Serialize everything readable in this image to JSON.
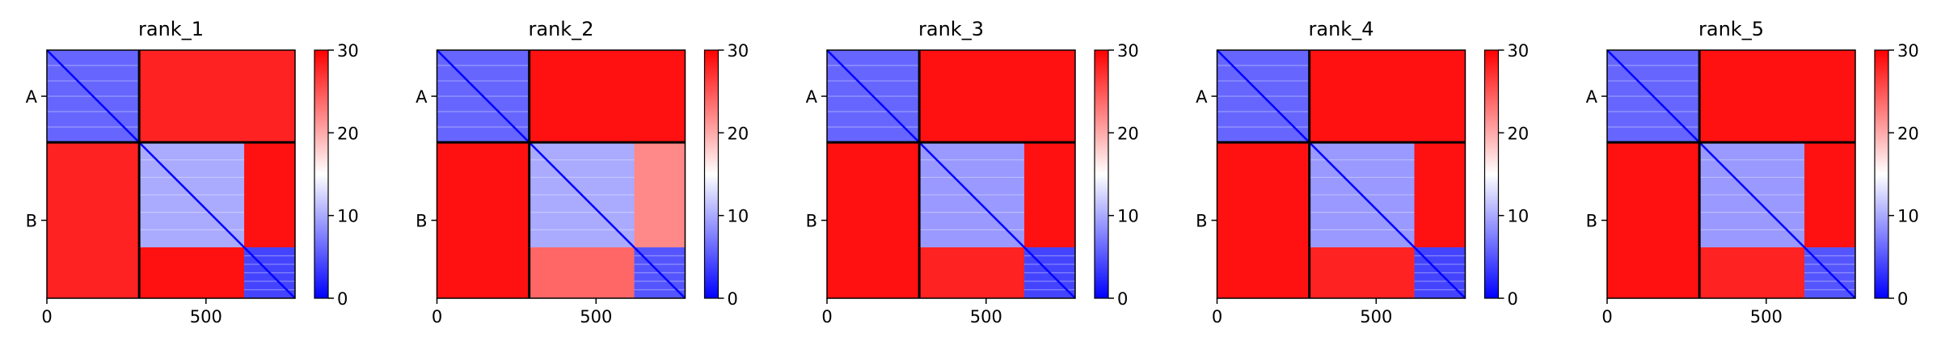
{
  "figure": {
    "background": "#ffffff"
  },
  "colormap": {
    "low": "#0000ff",
    "mid": "#ffffff",
    "high": "#ff0000"
  },
  "chart_data": [
    {
      "type": "heatmap",
      "title": "rank_1",
      "ylabel_chains": [
        "A",
        "B"
      ],
      "chain_boundary": 290,
      "n_residues": 780,
      "xticks": [
        0,
        500
      ],
      "colorbar": {
        "min": 0,
        "max": 30,
        "ticks": [
          0,
          10,
          20,
          30
        ]
      },
      "domains": [
        [
          0,
          290
        ],
        [
          290,
          620
        ],
        [
          620,
          780
        ]
      ],
      "blocks": [
        {
          "rows": [
            0,
            290
          ],
          "cols": [
            0,
            290
          ],
          "mean_value": 6
        },
        {
          "rows": [
            290,
            620
          ],
          "cols": [
            290,
            620
          ],
          "mean_value": 10
        },
        {
          "rows": [
            620,
            780
          ],
          "cols": [
            620,
            780
          ],
          "mean_value": 4
        },
        {
          "rows": [
            0,
            290
          ],
          "cols": [
            290,
            780
          ],
          "mean_value": 28
        },
        {
          "rows": [
            290,
            780
          ],
          "cols": [
            0,
            290
          ],
          "mean_value": 28
        },
        {
          "rows": [
            290,
            620
          ],
          "cols": [
            620,
            780
          ],
          "mean_value": 29
        },
        {
          "rows": [
            620,
            780
          ],
          "cols": [
            290,
            620
          ],
          "mean_value": 29
        }
      ]
    },
    {
      "type": "heatmap",
      "title": "rank_2",
      "ylabel_chains": [
        "A",
        "B"
      ],
      "chain_boundary": 290,
      "n_residues": 780,
      "xticks": [
        0,
        500
      ],
      "colorbar": {
        "min": 0,
        "max": 30,
        "ticks": [
          0,
          10,
          20,
          30
        ]
      },
      "domains": [
        [
          0,
          290
        ],
        [
          290,
          620
        ],
        [
          620,
          780
        ]
      ],
      "blocks": [
        {
          "rows": [
            0,
            290
          ],
          "cols": [
            0,
            290
          ],
          "mean_value": 6
        },
        {
          "rows": [
            290,
            620
          ],
          "cols": [
            290,
            620
          ],
          "mean_value": 10
        },
        {
          "rows": [
            620,
            780
          ],
          "cols": [
            620,
            780
          ],
          "mean_value": 5
        },
        {
          "rows": [
            0,
            290
          ],
          "cols": [
            290,
            780
          ],
          "mean_value": 29
        },
        {
          "rows": [
            290,
            780
          ],
          "cols": [
            0,
            290
          ],
          "mean_value": 29
        },
        {
          "rows": [
            290,
            620
          ],
          "cols": [
            620,
            780
          ],
          "mean_value": 22
        },
        {
          "rows": [
            620,
            780
          ],
          "cols": [
            290,
            620
          ],
          "mean_value": 24
        }
      ]
    },
    {
      "type": "heatmap",
      "title": "rank_3",
      "ylabel_chains": [
        "A",
        "B"
      ],
      "chain_boundary": 290,
      "n_residues": 780,
      "xticks": [
        0,
        500
      ],
      "colorbar": {
        "min": 0,
        "max": 30,
        "ticks": [
          0,
          10,
          20,
          30
        ]
      },
      "domains": [
        [
          0,
          290
        ],
        [
          290,
          620
        ],
        [
          620,
          780
        ]
      ],
      "blocks": [
        {
          "rows": [
            0,
            290
          ],
          "cols": [
            0,
            290
          ],
          "mean_value": 6
        },
        {
          "rows": [
            290,
            620
          ],
          "cols": [
            290,
            620
          ],
          "mean_value": 9
        },
        {
          "rows": [
            620,
            780
          ],
          "cols": [
            620,
            780
          ],
          "mean_value": 4
        },
        {
          "rows": [
            0,
            290
          ],
          "cols": [
            290,
            780
          ],
          "mean_value": 29
        },
        {
          "rows": [
            290,
            780
          ],
          "cols": [
            0,
            290
          ],
          "mean_value": 29
        },
        {
          "rows": [
            290,
            620
          ],
          "cols": [
            620,
            780
          ],
          "mean_value": 29
        },
        {
          "rows": [
            620,
            780
          ],
          "cols": [
            290,
            620
          ],
          "mean_value": 28
        }
      ]
    },
    {
      "type": "heatmap",
      "title": "rank_4",
      "ylabel_chains": [
        "A",
        "B"
      ],
      "chain_boundary": 290,
      "n_residues": 780,
      "xticks": [
        0,
        500
      ],
      "colorbar": {
        "min": 0,
        "max": 30,
        "ticks": [
          0,
          10,
          20,
          30
        ]
      },
      "domains": [
        [
          0,
          290
        ],
        [
          290,
          620
        ],
        [
          620,
          780
        ]
      ],
      "blocks": [
        {
          "rows": [
            0,
            290
          ],
          "cols": [
            0,
            290
          ],
          "mean_value": 6
        },
        {
          "rows": [
            290,
            620
          ],
          "cols": [
            290,
            620
          ],
          "mean_value": 9
        },
        {
          "rows": [
            620,
            780
          ],
          "cols": [
            620,
            780
          ],
          "mean_value": 4
        },
        {
          "rows": [
            0,
            290
          ],
          "cols": [
            290,
            780
          ],
          "mean_value": 29
        },
        {
          "rows": [
            290,
            780
          ],
          "cols": [
            0,
            290
          ],
          "mean_value": 29
        },
        {
          "rows": [
            290,
            620
          ],
          "cols": [
            620,
            780
          ],
          "mean_value": 29
        },
        {
          "rows": [
            620,
            780
          ],
          "cols": [
            290,
            620
          ],
          "mean_value": 28
        }
      ]
    },
    {
      "type": "heatmap",
      "title": "rank_5",
      "ylabel_chains": [
        "A",
        "B"
      ],
      "chain_boundary": 290,
      "n_residues": 780,
      "xticks": [
        0,
        500
      ],
      "colorbar": {
        "min": 0,
        "max": 30,
        "ticks": [
          0,
          10,
          20,
          30
        ]
      },
      "domains": [
        [
          0,
          290
        ],
        [
          290,
          620
        ],
        [
          620,
          780
        ]
      ],
      "blocks": [
        {
          "rows": [
            0,
            290
          ],
          "cols": [
            0,
            290
          ],
          "mean_value": 6
        },
        {
          "rows": [
            290,
            620
          ],
          "cols": [
            290,
            620
          ],
          "mean_value": 9
        },
        {
          "rows": [
            620,
            780
          ],
          "cols": [
            620,
            780
          ],
          "mean_value": 5
        },
        {
          "rows": [
            0,
            290
          ],
          "cols": [
            290,
            780
          ],
          "mean_value": 29
        },
        {
          "rows": [
            290,
            780
          ],
          "cols": [
            0,
            290
          ],
          "mean_value": 29
        },
        {
          "rows": [
            290,
            620
          ],
          "cols": [
            620,
            780
          ],
          "mean_value": 29
        },
        {
          "rows": [
            620,
            780
          ],
          "cols": [
            290,
            620
          ],
          "mean_value": 28
        }
      ]
    }
  ]
}
